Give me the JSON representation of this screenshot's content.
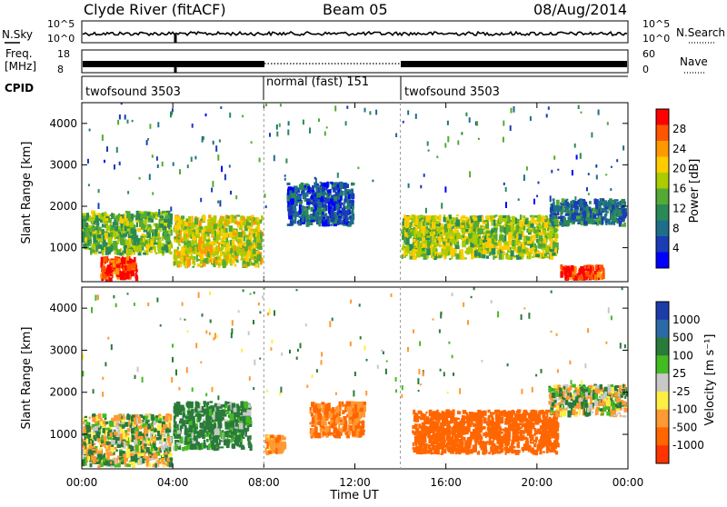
{
  "header": {
    "station": "Clyde River (fitACF)",
    "beam": "Beam 05",
    "date": "08/Aug/2014"
  },
  "nsky_panel": {
    "left_label": "N.Sky",
    "right_label": "N.Search",
    "left_ticks": [
      "10^5",
      "10^0"
    ],
    "right_ticks": [
      "10^5",
      "10^0"
    ]
  },
  "freq_panel": {
    "left_label_line1": "Freq.",
    "left_label_line2": "[MHz]",
    "right_label": "Nave",
    "left_ticks": [
      "18",
      "8"
    ],
    "right_ticks": [
      "60",
      "0"
    ]
  },
  "cpid_panel": {
    "label": "CPID",
    "segments": [
      {
        "start_h": 0,
        "end_h": 8,
        "text": "twofsound 3503"
      },
      {
        "start_h": 8,
        "end_h": 14,
        "text": "normal (fast) 151"
      },
      {
        "start_h": 14,
        "end_h": 24,
        "text": "twofsound 3503"
      }
    ]
  },
  "power_panel": {
    "ylabel": "Slant Range [km]",
    "yticks": [
      1000,
      2000,
      3000,
      4000
    ],
    "colorbar_label": "Power [dB]",
    "colorbar_ticks": [
      "28",
      "24",
      "20",
      "16",
      "12",
      "8",
      "4"
    ],
    "colors": [
      "#ff0000",
      "#ff5500",
      "#ff9900",
      "#ffcc00",
      "#aacc00",
      "#55aa33",
      "#2a8a55",
      "#1e6e8a",
      "#1a3cb4",
      "#0000ff"
    ]
  },
  "velocity_panel": {
    "ylabel": "Slant Range [km]",
    "yticks": [
      1000,
      2000,
      3000,
      4000
    ],
    "colorbar_label": "Velocity [m s⁻¹]",
    "colorbar_ticks": [
      "1000",
      "500",
      "100",
      "25",
      "-25",
      "-100",
      "-500",
      "-1000"
    ],
    "colors": [
      "#1e3ca8",
      "#2a6aa8",
      "#2a7a3a",
      "#44bb22",
      "#c8c8c8",
      "#ffee44",
      "#ff9933",
      "#ff6600",
      "#ff3300"
    ]
  },
  "x_axis": {
    "label": "Time UT",
    "ticks": [
      "00:00",
      "04:00",
      "08:00",
      "12:00",
      "16:00",
      "20:00",
      "00:00"
    ]
  },
  "chart_data": [
    {
      "type": "line",
      "title": "",
      "series": [
        {
          "name": "N.Sky",
          "note_units": "count (log)",
          "x_hours": [
            0,
            4,
            4.2,
            8,
            12,
            16,
            20,
            24
          ],
          "y": [
            100000,
            100000,
            1,
            100000,
            100000,
            100000,
            100000,
            100000
          ]
        }
      ]
    },
    {
      "type": "heatmap",
      "title": "Power [dB]",
      "xlabel": "Time UT",
      "ylabel": "Slant Range [km]",
      "xlim_hours": [
        0,
        24
      ],
      "ylim_km": [
        180,
        4500
      ],
      "value_range": [
        0,
        30
      ],
      "patches": [
        {
          "t0": 0.8,
          "t1": 2.5,
          "r0": 180,
          "r1": 800,
          "power": 28
        },
        {
          "t0": 0,
          "t1": 4,
          "r0": 800,
          "r1": 1900,
          "power": 14
        },
        {
          "t0": 4,
          "t1": 8,
          "r0": 500,
          "r1": 1800,
          "power": 18
        },
        {
          "t0": 9,
          "t1": 12,
          "r0": 1500,
          "r1": 2600,
          "power": 6
        },
        {
          "t0": 14,
          "t1": 21,
          "r0": 700,
          "r1": 1800,
          "power": 16
        },
        {
          "t0": 20.5,
          "t1": 24,
          "r0": 1500,
          "r1": 2200,
          "power": 8
        },
        {
          "t0": 21,
          "t1": 23,
          "r0": 200,
          "r1": 600,
          "power": 28
        }
      ]
    },
    {
      "type": "heatmap",
      "title": "Velocity [m s^-1]",
      "xlabel": "Time UT",
      "ylabel": "Slant Range [km]",
      "xlim_hours": [
        0,
        24
      ],
      "ylim_km": [
        180,
        4500
      ],
      "value_range": [
        -1000,
        1000
      ],
      "patches": [
        {
          "t0": 0,
          "t1": 4,
          "r0": 200,
          "r1": 1500,
          "velocity": 0
        },
        {
          "t0": 4,
          "t1": 7.5,
          "r0": 600,
          "r1": 1800,
          "velocity": 150
        },
        {
          "t0": 8,
          "t1": 9,
          "r0": 500,
          "r1": 1000,
          "velocity": -200
        },
        {
          "t0": 10,
          "t1": 12.5,
          "r0": 900,
          "r1": 1800,
          "velocity": -300
        },
        {
          "t0": 14.5,
          "t1": 21,
          "r0": 500,
          "r1": 1600,
          "velocity": -500
        },
        {
          "t0": 20.5,
          "t1": 24,
          "r0": 1400,
          "r1": 2200,
          "velocity": 0
        }
      ]
    }
  ]
}
